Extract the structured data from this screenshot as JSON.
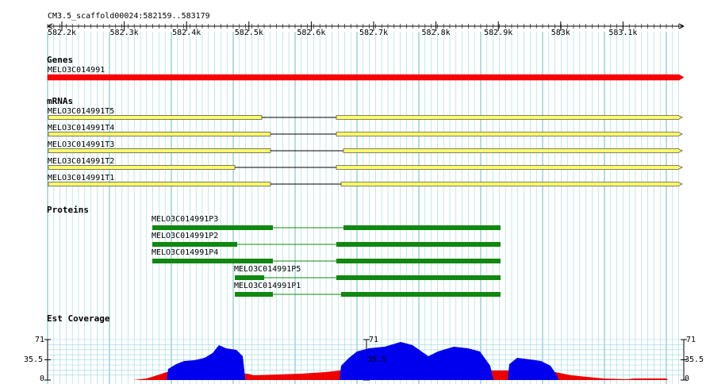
{
  "ruler": {
    "title": "CM3.5_scaffold00024:582159..583179",
    "ticks": [
      "582.2k",
      "582.3k",
      "582.4k",
      "582.5k",
      "582.6k",
      "582.7k",
      "582.8k",
      "582.9k",
      "583k",
      "583.1k"
    ]
  },
  "tracks": {
    "genes": {
      "title": "Genes",
      "features": [
        {
          "label": "MELO3C014991",
          "color": "#ff0000"
        }
      ]
    },
    "mrnas": {
      "title": "mRNAs",
      "features": [
        {
          "label": "MELO3C014991T5"
        },
        {
          "label": "MELO3C014991T4"
        },
        {
          "label": "MELO3C014991T3"
        },
        {
          "label": "MELO3C014991T2"
        },
        {
          "label": "MELO3C014991T1"
        }
      ]
    },
    "proteins": {
      "title": "Proteins",
      "features": [
        {
          "label": "MELO3C014991P3"
        },
        {
          "label": "MELO3C014991P2"
        },
        {
          "label": "MELO3C014991P4"
        },
        {
          "label": "MELO3C014991P5"
        },
        {
          "label": "MELO3C014991P1"
        }
      ]
    },
    "coverage": {
      "title": "Est Coverage",
      "y_labels": [
        "71",
        "35.5",
        "0"
      ]
    }
  },
  "colors": {
    "grid": "#9ad8e0",
    "gene": "#ff0000",
    "mrna_fill": "#ffff66",
    "protein": "#118811",
    "coverage_high": "#0000ee",
    "coverage_low": "#ee0000"
  }
}
